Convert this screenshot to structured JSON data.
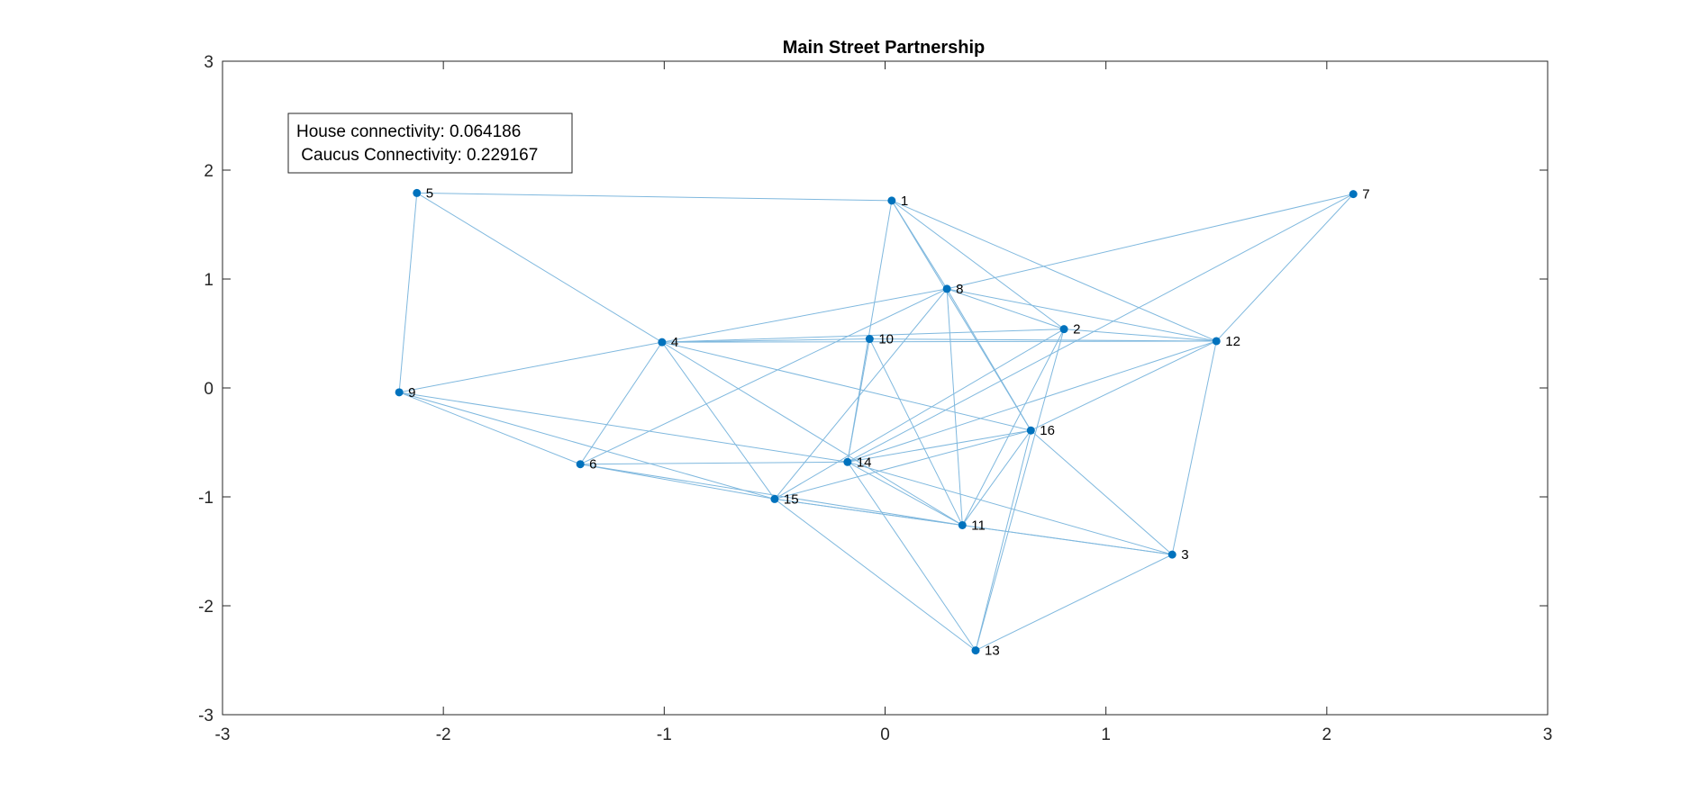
{
  "chart_data": {
    "type": "scatter",
    "title": "Main Street Partnership",
    "xlabel": "",
    "ylabel": "",
    "xlim": [
      -3,
      3
    ],
    "ylim": [
      -3,
      3
    ],
    "xticks": [
      -3,
      -2,
      -1,
      0,
      1,
      2,
      3
    ],
    "yticks": [
      -3,
      -2,
      -1,
      0,
      1,
      2,
      3
    ],
    "xtick_labels": [
      "-3",
      "-2",
      "-1",
      "0",
      "1",
      "2",
      "3"
    ],
    "ytick_labels": [
      "-3",
      "-2",
      "-1",
      "0",
      "1",
      "2",
      "3"
    ],
    "grid": false,
    "box": true,
    "annotation": {
      "line1": "House connectivity: 0.064186",
      "line2": " Caucus Connectivity: 0.229167"
    },
    "node_color": "#0072BD",
    "edge_color": "#7fb8de",
    "nodes": [
      {
        "id": "1",
        "x": 0.03,
        "y": 1.72
      },
      {
        "id": "2",
        "x": 0.81,
        "y": 0.54
      },
      {
        "id": "3",
        "x": 1.3,
        "y": -1.53
      },
      {
        "id": "4",
        "x": -1.01,
        "y": 0.42
      },
      {
        "id": "5",
        "x": -2.12,
        "y": 1.79
      },
      {
        "id": "6",
        "x": -1.38,
        "y": -0.7
      },
      {
        "id": "7",
        "x": 2.12,
        "y": 1.78
      },
      {
        "id": "8",
        "x": 0.28,
        "y": 0.91
      },
      {
        "id": "9",
        "x": -2.2,
        "y": -0.04
      },
      {
        "id": "10",
        "x": -0.07,
        "y": 0.45
      },
      {
        "id": "11",
        "x": 0.35,
        "y": -1.26
      },
      {
        "id": "12",
        "x": 1.5,
        "y": 0.43
      },
      {
        "id": "13",
        "x": 0.41,
        "y": -2.41
      },
      {
        "id": "14",
        "x": -0.17,
        "y": -0.68
      },
      {
        "id": "15",
        "x": -0.5,
        "y": -1.02
      },
      {
        "id": "16",
        "x": 0.66,
        "y": -0.39
      }
    ],
    "edges": [
      [
        "5",
        "1"
      ],
      [
        "5",
        "4"
      ],
      [
        "5",
        "9"
      ],
      [
        "1",
        "8"
      ],
      [
        "1",
        "16"
      ],
      [
        "1",
        "2"
      ],
      [
        "1",
        "12"
      ],
      [
        "1",
        "14"
      ],
      [
        "7",
        "8"
      ],
      [
        "7",
        "12"
      ],
      [
        "7",
        "14"
      ],
      [
        "8",
        "4"
      ],
      [
        "8",
        "6"
      ],
      [
        "8",
        "15"
      ],
      [
        "8",
        "2"
      ],
      [
        "8",
        "12"
      ],
      [
        "8",
        "16"
      ],
      [
        "8",
        "11"
      ],
      [
        "4",
        "10"
      ],
      [
        "4",
        "2"
      ],
      [
        "4",
        "12"
      ],
      [
        "4",
        "9"
      ],
      [
        "4",
        "6"
      ],
      [
        "4",
        "15"
      ],
      [
        "4",
        "11"
      ],
      [
        "4",
        "16"
      ],
      [
        "10",
        "14"
      ],
      [
        "10",
        "11"
      ],
      [
        "10",
        "12"
      ],
      [
        "2",
        "15"
      ],
      [
        "2",
        "11"
      ],
      [
        "2",
        "12"
      ],
      [
        "2",
        "13"
      ],
      [
        "12",
        "14"
      ],
      [
        "12",
        "3"
      ],
      [
        "12",
        "16"
      ],
      [
        "9",
        "6"
      ],
      [
        "9",
        "15"
      ],
      [
        "9",
        "14"
      ],
      [
        "6",
        "14"
      ],
      [
        "6",
        "15"
      ],
      [
        "6",
        "11"
      ],
      [
        "14",
        "16"
      ],
      [
        "14",
        "3"
      ],
      [
        "14",
        "11"
      ],
      [
        "14",
        "13"
      ],
      [
        "15",
        "11"
      ],
      [
        "15",
        "13"
      ],
      [
        "15",
        "3"
      ],
      [
        "15",
        "16"
      ],
      [
        "16",
        "3"
      ],
      [
        "16",
        "11"
      ],
      [
        "16",
        "13"
      ],
      [
        "13",
        "3"
      ],
      [
        "11",
        "3"
      ]
    ]
  }
}
